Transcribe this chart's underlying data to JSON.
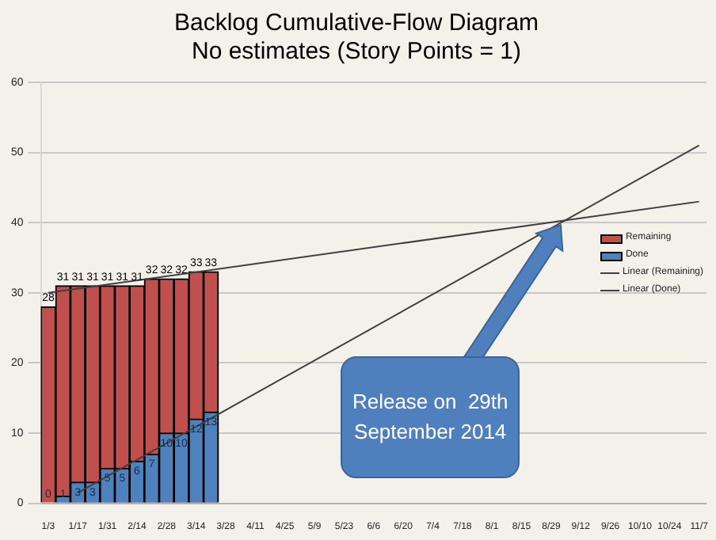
{
  "chart_data": {
    "type": "bar",
    "title": "Backlog Cumulative-Flow Diagram",
    "subtitle": "No estimates (Story Points = 1)",
    "categories": [
      "1/3",
      null,
      "1/17",
      null,
      "1/31",
      null,
      "2/14",
      null,
      "2/28",
      null,
      "3/14",
      null,
      "3/28",
      null,
      "4/11",
      null,
      "4/25",
      null,
      "5/9",
      null,
      "5/23",
      null,
      "6/6",
      null,
      "6/20",
      null,
      "7/4",
      null,
      "7/18",
      null,
      "8/1",
      null,
      "8/15",
      null,
      "8/29",
      null,
      "9/12",
      null,
      "9/26",
      null,
      "10/10",
      null,
      "10/24",
      null,
      "11/7"
    ],
    "series": [
      {
        "name": "Remaining",
        "color": "#c0504d",
        "values": [
          28,
          31,
          31,
          31,
          31,
          31,
          31,
          32,
          32,
          32,
          33,
          33,
          null,
          null,
          null,
          null,
          null,
          null,
          null,
          null,
          null,
          null,
          null,
          null,
          null,
          null,
          null,
          null,
          null,
          null,
          null,
          null,
          null,
          null,
          null,
          null,
          null,
          null,
          null,
          null,
          null,
          null,
          null,
          null,
          null
        ],
        "value_labels": [
          "28",
          "31",
          "31",
          "31",
          "31",
          "31",
          "31",
          "32",
          "32",
          "32",
          "33",
          "33",
          null,
          null,
          null,
          null,
          null,
          null,
          null,
          null,
          null,
          null,
          null,
          null,
          null,
          null,
          null,
          null,
          null,
          null,
          null,
          null,
          null,
          null,
          null,
          null,
          null,
          null,
          null,
          null,
          null,
          null,
          null,
          null,
          null
        ]
      },
      {
        "name": "Done",
        "color": "#4f81bd",
        "values": [
          0,
          1,
          3,
          3,
          5,
          5,
          6,
          7,
          10,
          10,
          12,
          13,
          null,
          null,
          null,
          null,
          null,
          null,
          null,
          null,
          null,
          null,
          null,
          null,
          null,
          null,
          null,
          null,
          null,
          null,
          null,
          null,
          null,
          null,
          null,
          null,
          null,
          null,
          null,
          null,
          null,
          null,
          null,
          null,
          null
        ],
        "value_labels": [
          "0",
          "1",
          "3",
          "3",
          "5",
          "5",
          "6",
          "7",
          "10",
          "10",
          "12",
          "13",
          null,
          null,
          null,
          null,
          null,
          null,
          null,
          null,
          null,
          null,
          null,
          null,
          null,
          null,
          null,
          null,
          null,
          null,
          null,
          null,
          null,
          null,
          null,
          null,
          null,
          null,
          null,
          null,
          null,
          null,
          null,
          null,
          null
        ]
      },
      {
        "name": "Linear (Remaining)",
        "type": "line",
        "color": "#404040",
        "x": [
          "1/3",
          "11/7"
        ],
        "values": [
          30,
          43
        ]
      },
      {
        "name": "Linear (Done)",
        "type": "line",
        "color": "#404040",
        "x": [
          "1/17",
          "11/7"
        ],
        "values": [
          1.5,
          51
        ]
      }
    ],
    "ylim": [
      0,
      60
    ],
    "yticks": [
      0,
      10,
      20,
      30,
      40,
      50,
      60
    ],
    "grid": "y",
    "legend": "right",
    "marker": "none",
    "annotations": [
      "Release on  29th September 2014"
    ]
  }
}
